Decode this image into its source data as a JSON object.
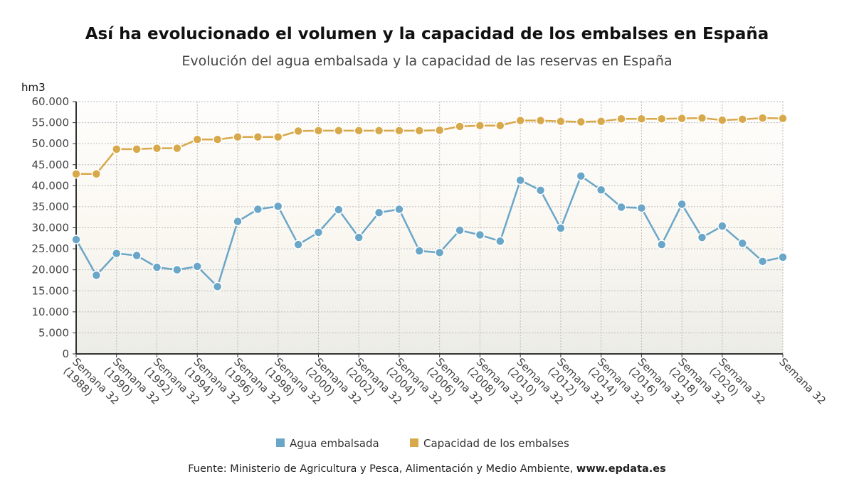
{
  "chart_data": {
    "type": "line",
    "title": "Así ha evolucionado el volumen y la capacidad de los embalses en España",
    "subtitle": "Evolución del agua embalsada y la capacidad de las reservas en España",
    "ylabel": "hm3",
    "xlabel": "",
    "ylim": [
      0,
      60000
    ],
    "yticks": [
      0,
      5000,
      10000,
      15000,
      20000,
      25000,
      30000,
      35000,
      40000,
      45000,
      50000,
      55000,
      60000
    ],
    "ytick_labels": [
      "0",
      "5.000",
      "10.000",
      "15.000",
      "20.000",
      "25.000",
      "30.000",
      "35.000",
      "40.000",
      "45.000",
      "50.000",
      "55.000",
      "60.000"
    ],
    "grid": true,
    "legend_position": "bottom-center",
    "x": [
      1988,
      1989,
      1990,
      1991,
      1992,
      1993,
      1994,
      1995,
      1996,
      1997,
      1998,
      1999,
      2000,
      2001,
      2002,
      2003,
      2004,
      2005,
      2006,
      2007,
      2008,
      2009,
      2010,
      2011,
      2012,
      2013,
      2014,
      2015,
      2016,
      2017,
      2018,
      2019,
      2020,
      2021,
      2022,
      2023
    ],
    "xtick_labels": [
      {
        "index": 0,
        "line1": "Semana 32",
        "line2": "(1988)"
      },
      {
        "index": 2,
        "line1": "Semana 32",
        "line2": "(1990)"
      },
      {
        "index": 4,
        "line1": "Semana 32",
        "line2": "(1992)"
      },
      {
        "index": 6,
        "line1": "Semana 32",
        "line2": "(1994)"
      },
      {
        "index": 8,
        "line1": "Semana 32",
        "line2": "(1996)"
      },
      {
        "index": 10,
        "line1": "Semana 32",
        "line2": "(1998)"
      },
      {
        "index": 12,
        "line1": "Semana 32",
        "line2": "(2000)"
      },
      {
        "index": 14,
        "line1": "Semana 32",
        "line2": "(2002)"
      },
      {
        "index": 16,
        "line1": "Semana 32",
        "line2": "(2004)"
      },
      {
        "index": 18,
        "line1": "Semana 32",
        "line2": "(2006)"
      },
      {
        "index": 20,
        "line1": "Semana 32",
        "line2": "(2008)"
      },
      {
        "index": 22,
        "line1": "Semana 32",
        "line2": "(2010)"
      },
      {
        "index": 24,
        "line1": "Semana 32",
        "line2": "(2012)"
      },
      {
        "index": 26,
        "line1": "Semana 32",
        "line2": "(2014)"
      },
      {
        "index": 28,
        "line1": "Semana 32",
        "line2": "(2016)"
      },
      {
        "index": 30,
        "line1": "Semana 32",
        "line2": "(2018)"
      },
      {
        "index": 32,
        "line1": "Semana 32",
        "line2": "(2020)"
      },
      {
        "index": 35,
        "line1": "Semana 32",
        "line2": ""
      }
    ],
    "series": [
      {
        "name": "Agua embalsada",
        "color": "#6aa6c8",
        "values": [
          27200,
          18700,
          23900,
          23400,
          20600,
          20000,
          20800,
          16000,
          31500,
          34400,
          35100,
          26000,
          28900,
          34300,
          27700,
          33600,
          34400,
          24500,
          24100,
          29400,
          28300,
          26800,
          41300,
          38900,
          29900,
          42300,
          39000,
          34900,
          34700,
          26000,
          35600,
          27700,
          30400,
          26300,
          22000,
          23000
        ]
      },
      {
        "name": "Capacidad de los embalses",
        "color": "#d8a94a",
        "values": [
          42800,
          42800,
          48700,
          48700,
          48900,
          48900,
          51000,
          51000,
          51600,
          51600,
          51600,
          53000,
          53100,
          53100,
          53100,
          53100,
          53100,
          53100,
          53200,
          54100,
          54300,
          54300,
          55500,
          55500,
          55300,
          55200,
          55300,
          55900,
          55900,
          55900,
          56000,
          56100,
          55600,
          55800,
          56100,
          56000
        ]
      }
    ]
  },
  "source": {
    "text": "Fuente: Ministerio de Agricultura y Pesca, Alimentación y Medio Ambiente, ",
    "site": "www.epdata.es"
  }
}
